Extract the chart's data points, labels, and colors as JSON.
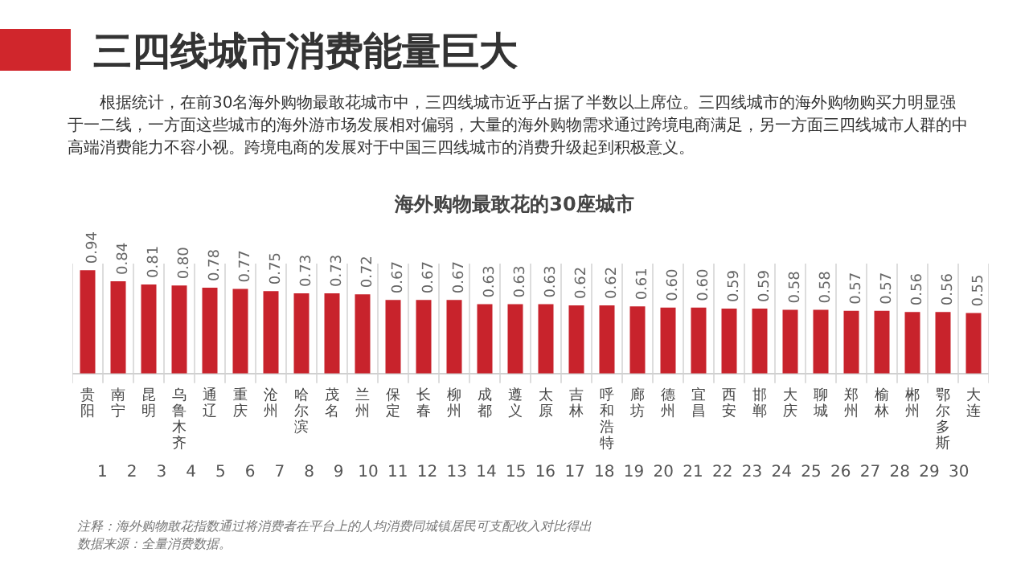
{
  "chart_data": {
    "type": "bar",
    "title": "三四线城市消费能量巨大",
    "subtitle": "根据统计，在前30名海外购物最敢花城市中，三四线城市近乎占据了半数以上席位。三四线城市的海外购物购买力明显强于一二线，一方面这些城市的海外游市场发展相对偏弱，大量的海外购物需求通过跨境电商满足，另一方面三四线城市人群的中高端消费能力不容小视。跨境电商的发展对于中国三四线城市的消费升级起到积极意义。",
    "xlabel": "海外购物最敢花的30座城市",
    "categories": [
      "贵阳",
      "南宁",
      "昆明",
      "乌鲁木齐",
      "通辽",
      "重庆",
      "沧州",
      "哈尔滨",
      "茂名",
      "兰州",
      "保定",
      "长春",
      "柳州",
      "成都",
      "遵义",
      "太原",
      "吉林",
      "呼和浩特",
      "廊坊",
      "德州",
      "宜昌",
      "西安",
      "邯郸",
      "大庆",
      "聊城",
      "郑州",
      "榆林",
      "郴州",
      "鄂尔多斯",
      "大连"
    ],
    "values": [
      0.94,
      0.84,
      0.81,
      0.8,
      0.78,
      0.77,
      0.75,
      0.73,
      0.73,
      0.72,
      0.67,
      0.67,
      0.67,
      0.63,
      0.63,
      0.63,
      0.62,
      0.62,
      0.61,
      0.6,
      0.6,
      0.59,
      0.59,
      0.58,
      0.58,
      0.57,
      0.57,
      0.56,
      0.56,
      0.55
    ],
    "value_labels": [
      "0.94",
      "0.84",
      "0.81",
      "0.80",
      "0.78",
      "0.77",
      "0.75",
      "0.73",
      "0.73",
      "0.72",
      "0.67",
      "0.67",
      "0.67",
      "0.63",
      "0.63",
      "0.63",
      "0.62",
      "0.62",
      "0.61",
      "0.60",
      "0.60",
      "0.59",
      "0.59",
      "0.58",
      "0.58",
      "0.57",
      "0.57",
      "0.56",
      "0.56",
      "0.55"
    ],
    "color": "#c8232c",
    "grid": "x",
    "tick_labels": "x",
    "x2lim": [
      0.5,
      30.5
    ],
    "x2ticks": [
      1,
      2,
      3,
      4,
      5,
      6,
      7,
      8,
      9,
      10,
      11,
      12,
      13,
      14,
      15,
      16,
      17,
      18,
      19,
      20,
      21,
      22,
      23,
      24,
      25,
      26,
      27,
      28,
      29,
      30
    ],
    "annotations": [
      "注释：海外购物敢花指数通过将消费者在平台上的人均消费同城镇居民可支配收入对比得出",
      "数据来源：全量消费数据。"
    ]
  }
}
